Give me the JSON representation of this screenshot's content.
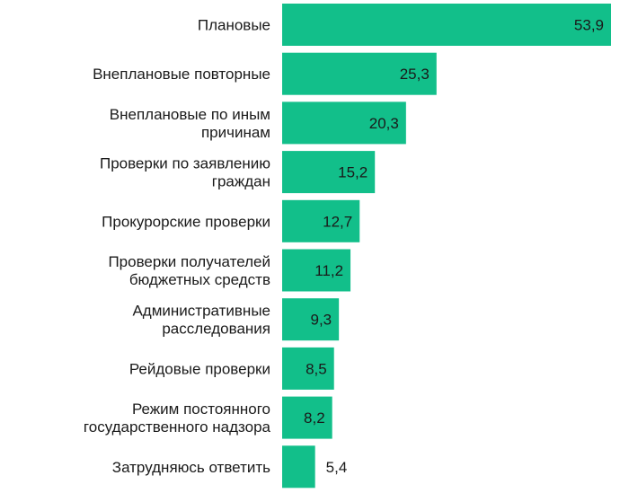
{
  "chart_data": {
    "type": "bar",
    "orientation": "horizontal",
    "categories": [
      "Плановые",
      "Внеплановые повторные",
      "Внеплановые по иным причинам",
      "Проверки по заявлению граждан",
      "Прокурорские проверки",
      "Проверки получателей бюджетных средств",
      "Административные расследования",
      "Рейдовые проверки",
      "Режим постоянного государственного надзора",
      "Затрудняюсь ответить"
    ],
    "category_lines": [
      [
        "Плановые"
      ],
      [
        "Внеплановые повторные"
      ],
      [
        "Внеплановые по иным",
        "причинам"
      ],
      [
        "Проверки по заявлению",
        "граждан"
      ],
      [
        "Прокурорские проверки"
      ],
      [
        "Проверки получателей",
        "бюджетных средств"
      ],
      [
        "Административные",
        "расследования"
      ],
      [
        "Рейдовые проверки"
      ],
      [
        "Режим постоянного",
        "государственного надзора"
      ],
      [
        "Затрудняюсь ответить"
      ]
    ],
    "values": [
      53.9,
      25.3,
      20.3,
      15.2,
      12.7,
      11.2,
      9.3,
      8.5,
      8.2,
      5.4
    ],
    "value_labels": [
      "53,9",
      "25,3",
      "20,3",
      "15,2",
      "12,7",
      "11,2",
      "9,3",
      "8,5",
      "8,2",
      "5,4"
    ],
    "xlim": [
      0,
      53.9
    ],
    "bar_color": "#12bf8a",
    "label_color": "#1a1a1a",
    "grid": false,
    "legend": "none"
  }
}
